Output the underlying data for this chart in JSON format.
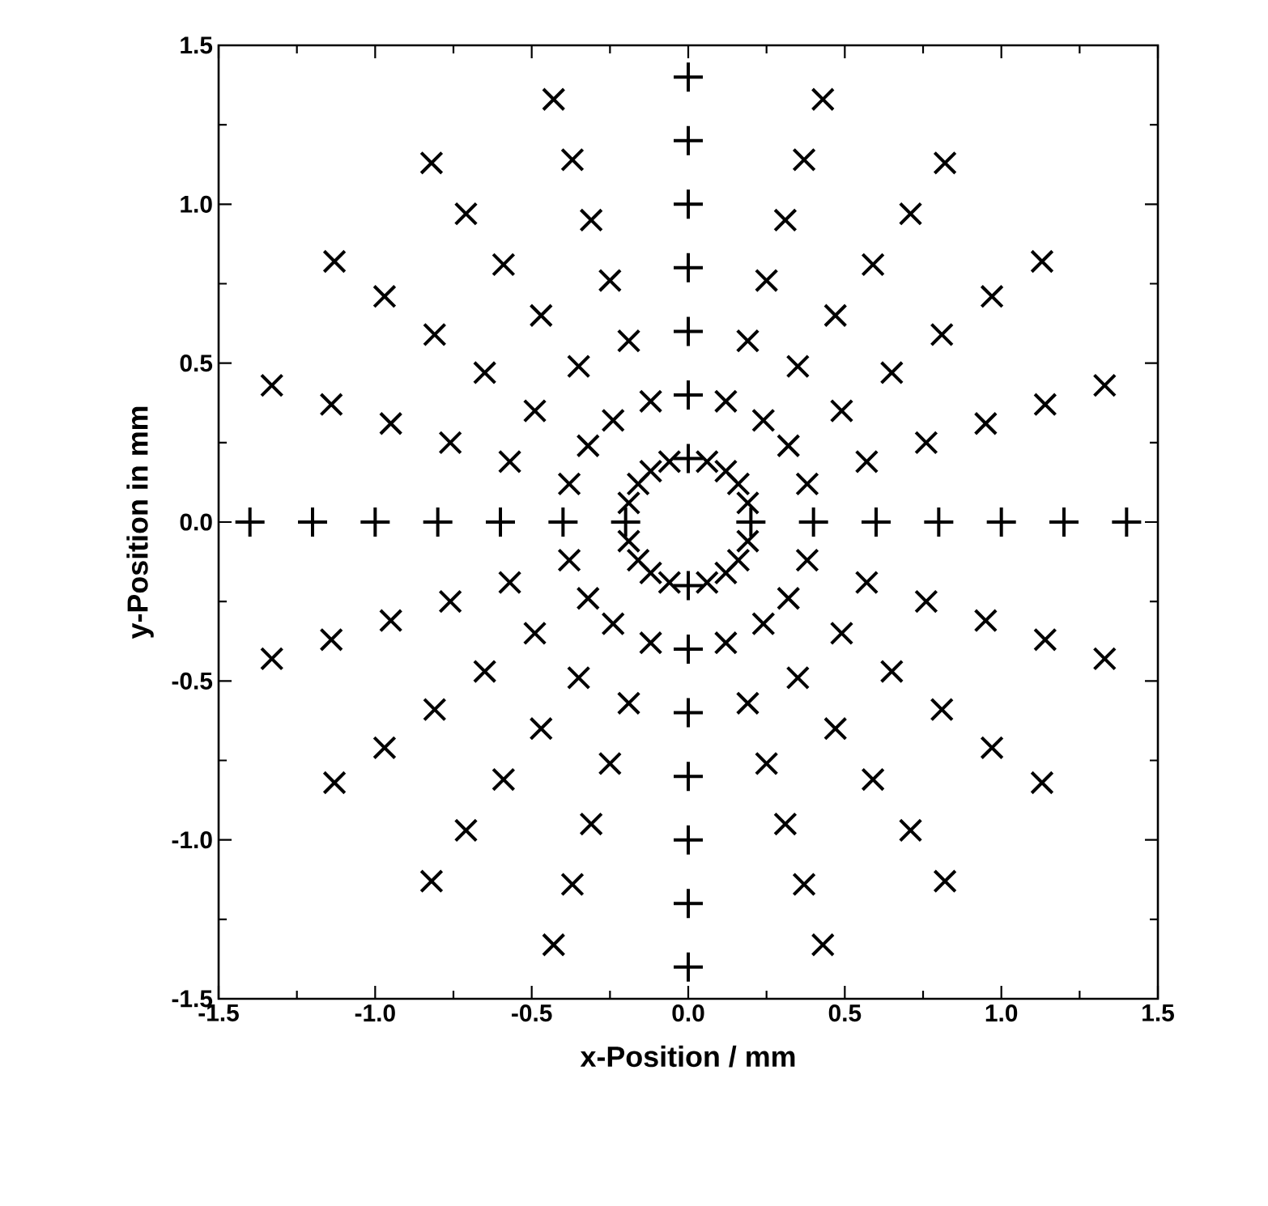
{
  "chart_data": {
    "type": "scatter",
    "xlabel": "x-Position / mm",
    "ylabel": "y-Position in mm",
    "xlim": [
      -1.5,
      1.5
    ],
    "ylim": [
      -1.5,
      1.5
    ],
    "xticks": [
      {
        "value": -1.5,
        "label": "-1.5"
      },
      {
        "value": -1,
        "label": "-1.0"
      },
      {
        "value": -0.5,
        "label": "-0.5"
      },
      {
        "value": 0,
        "label": "0.0"
      },
      {
        "value": 0.5,
        "label": "0.5"
      },
      {
        "value": 1,
        "label": "1.0"
      },
      {
        "value": 1.5,
        "label": "1.5"
      }
    ],
    "yticks": [
      {
        "value": -1.5,
        "label": "-1.5"
      },
      {
        "value": -1,
        "label": "-1.0"
      },
      {
        "value": -0.5,
        "label": "-0.5"
      },
      {
        "value": 0,
        "label": "0.0"
      },
      {
        "value": 0.5,
        "label": "0.5"
      },
      {
        "value": 1,
        "label": "1.0"
      },
      {
        "value": 1.5,
        "label": "1.5"
      }
    ],
    "series": [
      {
        "color": "#000000",
        "marker": "plus",
        "x": [
          0.2,
          0.4,
          0.6,
          0.8,
          1.0,
          1.2,
          1.4,
          -0.2,
          -0.4,
          -0.6,
          -0.8,
          -1.0,
          -1.2,
          -1.4,
          0,
          0,
          0,
          0,
          0,
          0,
          0,
          0,
          0,
          0,
          0,
          0,
          0,
          0
        ],
        "values": [
          0,
          0,
          0,
          0,
          0,
          0,
          0,
          0,
          0,
          0,
          0,
          0,
          0,
          0,
          0.2,
          0.4,
          0.6,
          0.8,
          1.0,
          1.2,
          1.4,
          -0.2,
          -0.4,
          -0.6,
          -0.8,
          -1.0,
          -1.2,
          -1.4
        ]
      },
      {
        "color": "#000000",
        "marker": "cross",
        "x": [
          0.19,
          0.38,
          0.57,
          0.76,
          0.95,
          1.14,
          1.33,
          0.16,
          0.32,
          0.49,
          0.65,
          0.81,
          0.97,
          1.13,
          0.12,
          0.24,
          0.35,
          0.47,
          0.59,
          0.71,
          0.82,
          0.06,
          0.12,
          0.19,
          0.25,
          0.31,
          0.37,
          0.43,
          -0.19,
          -0.38,
          -0.57,
          -0.76,
          -0.95,
          -1.14,
          -1.33,
          -0.16,
          -0.32,
          -0.49,
          -0.65,
          -0.81,
          -0.97,
          -1.13,
          -0.12,
          -0.24,
          -0.35,
          -0.47,
          -0.59,
          -0.71,
          -0.82,
          -0.06,
          -0.12,
          -0.19,
          -0.25,
          -0.31,
          -0.37,
          -0.43,
          -0.19,
          -0.38,
          -0.57,
          -0.76,
          -0.95,
          -1.14,
          -1.33,
          -0.16,
          -0.32,
          -0.49,
          -0.65,
          -0.81,
          -0.97,
          -1.13,
          -0.12,
          -0.24,
          -0.35,
          -0.47,
          -0.59,
          -0.71,
          -0.82,
          -0.06,
          -0.12,
          -0.19,
          -0.25,
          -0.31,
          -0.37,
          -0.43,
          0.19,
          0.38,
          0.57,
          0.76,
          0.95,
          1.14,
          1.33,
          0.16,
          0.32,
          0.49,
          0.65,
          0.81,
          0.97,
          1.13,
          0.12,
          0.24,
          0.35,
          0.47,
          0.59,
          0.71,
          0.82,
          0.06,
          0.12,
          0.19,
          0.25,
          0.31,
          0.37,
          0.43
        ],
        "values": [
          0.06,
          0.12,
          0.19,
          0.25,
          0.31,
          0.37,
          0.43,
          0.12,
          0.24,
          0.35,
          0.47,
          0.59,
          0.71,
          0.82,
          0.16,
          0.32,
          0.49,
          0.65,
          0.81,
          0.97,
          1.13,
          0.19,
          0.38,
          0.57,
          0.76,
          0.95,
          1.14,
          1.33,
          0.06,
          0.12,
          0.19,
          0.25,
          0.31,
          0.37,
          0.43,
          0.12,
          0.24,
          0.35,
          0.47,
          0.59,
          0.71,
          0.82,
          0.16,
          0.32,
          0.49,
          0.65,
          0.81,
          0.97,
          1.13,
          0.19,
          0.38,
          0.57,
          0.76,
          0.95,
          1.14,
          1.33,
          -0.06,
          -0.12,
          -0.19,
          -0.25,
          -0.31,
          -0.37,
          -0.43,
          -0.12,
          -0.24,
          -0.35,
          -0.47,
          -0.59,
          -0.71,
          -0.82,
          -0.16,
          -0.32,
          -0.49,
          -0.65,
          -0.81,
          -0.97,
          -1.13,
          -0.19,
          -0.38,
          -0.57,
          -0.76,
          -0.95,
          -1.14,
          -1.33,
          -0.06,
          -0.12,
          -0.19,
          -0.25,
          -0.31,
          -0.37,
          -0.43,
          -0.12,
          -0.24,
          -0.35,
          -0.47,
          -0.59,
          -0.71,
          -0.82,
          -0.16,
          -0.32,
          -0.49,
          -0.65,
          -0.81,
          -0.97,
          -1.13,
          -0.19,
          -0.38,
          -0.57,
          -0.76,
          -0.95,
          -1.14,
          -1.33
        ]
      }
    ]
  }
}
